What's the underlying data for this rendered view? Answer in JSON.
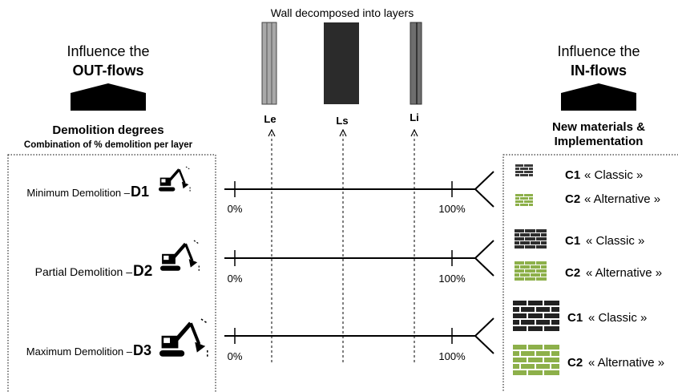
{
  "top_title": "Wall decomposed into layers",
  "layers": [
    {
      "label": "Le",
      "color": "#9a9a9a"
    },
    {
      "label": "Ls",
      "color": "#2b2b2b"
    },
    {
      "label": "Li",
      "color": "#6e6e6e"
    }
  ],
  "left": {
    "header_line1": "Influence the",
    "header_line2": "OUT-flows",
    "title": "Demolition degrees",
    "subtitle": "Combination of % demolition per layer"
  },
  "right": {
    "header_line1": "Influence the",
    "header_line2": "IN-flows",
    "title_line1": "New materials &",
    "title_line2": "Implementation"
  },
  "rows": [
    {
      "prefix": "Minimum Demolition – ",
      "code": "D1",
      "start": "0%",
      "end": "100%",
      "options": [
        {
          "code": "C1",
          "label": "« Classic »",
          "color": "#3a3a3a"
        },
        {
          "code": "C2",
          "label": "« Alternative »",
          "color": "#8db04a"
        }
      ]
    },
    {
      "prefix": "Partial Demolition – ",
      "code": "D2",
      "start": "0%",
      "end": "100%",
      "options": [
        {
          "code": "C1",
          "label": "« Classic »",
          "color": "#2d2d2d"
        },
        {
          "code": "C2",
          "label": "« Alternative »",
          "color": "#8db04a"
        }
      ]
    },
    {
      "prefix": "Maximum Demolition – ",
      "code": "D3",
      "start": "0%",
      "end": "100%",
      "options": [
        {
          "code": "C1",
          "label": "« Classic »",
          "color": "#222222"
        },
        {
          "code": "C2",
          "label": "« Alternative »",
          "color": "#8db04a"
        }
      ]
    }
  ]
}
